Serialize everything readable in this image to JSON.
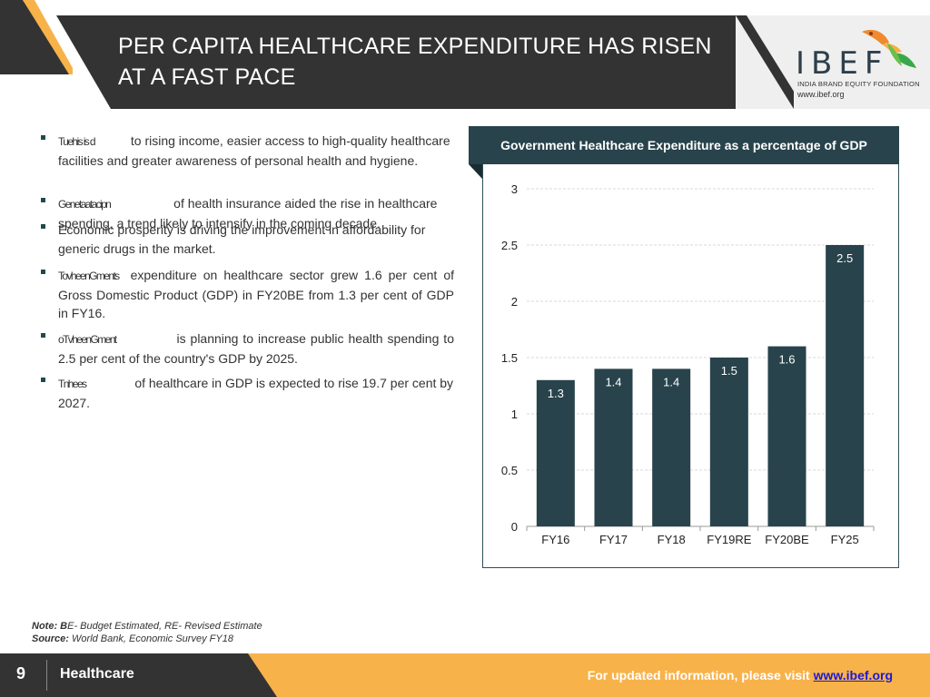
{
  "header": {
    "title": "PER CAPITA HEALTHCARE EXPENDITURE HAS RISEN AT A FAST PACE",
    "logo_text": "IBEF",
    "logo_subtitle": "INDIA BRAND EQUITY FOUNDATION",
    "logo_url": "www.ibef.org"
  },
  "bullets": [
    {
      "kw": "Tuehis is d",
      "text": "to rising income, easier access to high-quality healthcare  facilities and greater awareness of personal health and hygiene."
    },
    {
      "kw": "Genetaatacipn",
      "text": "of health insurance aided the rise in healthcare  spending, a trend likely to intensify in the coming decade."
    },
    {
      "kw": "",
      "text": "Economic prosperity is driving the improvement in affordability for generic drugs in the market."
    },
    {
      "kw": "TovheenGments",
      "text": "expenditure  on  healthcare sector grew  1.6 per  cent of Gross Domestic Product (GDP) in FY20BE from 1.3 per cent  of GDP in FY16."
    },
    {
      "kw": "oTvheenGment",
      "text": "is planning to increase public health spending to 2.5 per cent of the country's GDP by 2025."
    },
    {
      "kw": "Tnhees",
      "text": "of healthcare in GDP is expected to rise 19.7 per cent by  2027."
    }
  ],
  "chart_data": {
    "type": "bar",
    "title": "Government Healthcare Expenditure as a percentage of GDP",
    "categories": [
      "FY16",
      "FY17",
      "FY18",
      "FY19RE",
      "FY20BE",
      "FY25"
    ],
    "values": [
      1.3,
      1.4,
      1.4,
      1.5,
      1.6,
      2.5
    ],
    "data_labels": [
      "1.3",
      "1.4",
      "1.4",
      "1.5",
      "1.6",
      "2.5"
    ],
    "yticks": [
      "0",
      "0.5",
      "1",
      "1.5",
      "2",
      "2.5",
      "3"
    ],
    "ylim": [
      0,
      3
    ],
    "xlabel": "",
    "ylabel": "",
    "grid": true,
    "bar_color": "#28434b",
    "label_color": "#ffffff"
  },
  "notes": {
    "note_label": "Note: B",
    "note_text": "E- Budget Estimated, RE- Revised Estimate",
    "source_label": "Source:",
    "source_text": "World Bank, Economic Survey FY18"
  },
  "footer": {
    "page_number": "9",
    "section": "Healthcare",
    "cta_text": "For updated information, please visit ",
    "cta_link": "www.ibef.org"
  },
  "colors": {
    "dark": "#333333",
    "accent_orange": "#f8b24a",
    "chart_dark": "#28434b"
  }
}
